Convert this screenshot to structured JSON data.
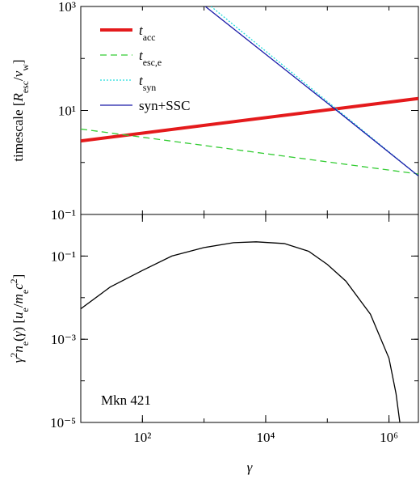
{
  "chart_data": [
    {
      "type": "line",
      "ylabel": [
        "timescale [",
        {
          "i": "R"
        },
        {
          "sub": "esc"
        },
        "/",
        {
          "i": "v"
        },
        {
          "sub": "w"
        },
        "]"
      ],
      "xlim": [
        10,
        3000000
      ],
      "ylim": [
        0.1,
        1000
      ],
      "log_x": true,
      "log_y": true,
      "yticks": [
        {
          "value": 0.1,
          "label": "10⁻¹"
        },
        {
          "value": 10,
          "label": "10¹"
        },
        {
          "value": 1000,
          "label": "10³"
        }
      ],
      "legend": "upper left",
      "series": [
        {
          "name": [
            {
              "i": "t"
            },
            {
              "sub": "acc"
            }
          ],
          "color": "#e41a1c",
          "width": 4,
          "dash": "none",
          "x": [
            10,
            3000000
          ],
          "values": [
            2.6,
            17
          ]
        },
        {
          "name": [
            {
              "i": "t"
            },
            {
              "sub": "esc,e"
            }
          ],
          "color": "#33cc33",
          "width": 1.3,
          "dash": "8,5",
          "x": [
            10,
            3000000
          ],
          "values": [
            4.4,
            0.6
          ]
        },
        {
          "name": [
            {
              "i": "t"
            },
            {
              "sub": "syn"
            }
          ],
          "color": "#22dddd",
          "width": 1.3,
          "dash": "2,2",
          "x": [
            1300,
            3000000
          ],
          "values": [
            1000,
            0.55
          ]
        },
        {
          "name": [
            "syn+SSC"
          ],
          "color": "#1a1aa8",
          "width": 1.3,
          "dash": "none",
          "x": [
            1050,
            150000,
            3000000
          ],
          "values": [
            1000,
            9.5,
            0.55
          ]
        }
      ]
    },
    {
      "type": "line",
      "ylabel": [
        {
          "i": "γ"
        },
        {
          "sup": "2"
        },
        {
          "i": "n"
        },
        {
          "sub": "e"
        },
        "(",
        {
          "i": "γ"
        },
        ") [",
        {
          "i": "u"
        },
        {
          "sub": "e"
        },
        "/",
        {
          "i": "m"
        },
        {
          "sub": "e"
        },
        {
          "i": "c"
        },
        {
          "sup": "2"
        },
        "]"
      ],
      "xlabel": "γ",
      "xlim": [
        10,
        3000000
      ],
      "ylim": [
        1e-05,
        1
      ],
      "log_x": true,
      "log_y": true,
      "xticks": [
        {
          "value": 100,
          "label": "10²"
        },
        {
          "value": 10000,
          "label": "10⁴"
        },
        {
          "value": 1000000,
          "label": "10⁶"
        }
      ],
      "yticks": [
        {
          "value": 1e-05,
          "label": "10⁻⁵"
        },
        {
          "value": 0.001,
          "label": "10⁻³"
        },
        {
          "value": 0.1,
          "label": "10⁻¹"
        }
      ],
      "annotation": "Mkn 421",
      "series": [
        {
          "color": "#000000",
          "width": 1.3,
          "dash": "none",
          "x": [
            10,
            30,
            100,
            300,
            1000,
            3000,
            7000,
            20000,
            50000,
            100000,
            200000,
            500000,
            1000000,
            1300000,
            1500000
          ],
          "values": [
            0.0054,
            0.018,
            0.045,
            0.1,
            0.16,
            0.21,
            0.22,
            0.2,
            0.13,
            0.063,
            0.025,
            0.004,
            0.00035,
            5e-05,
            1e-05
          ]
        }
      ]
    }
  ]
}
